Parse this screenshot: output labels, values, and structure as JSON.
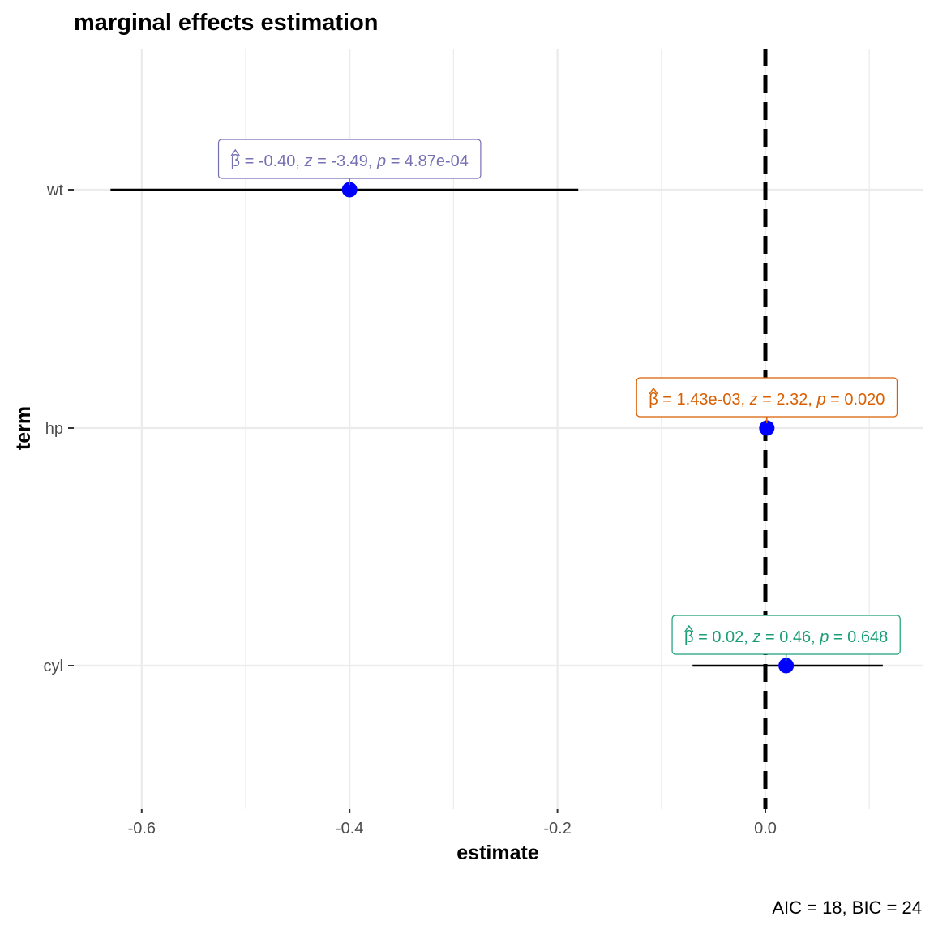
{
  "chart_data": {
    "type": "scatter",
    "title": "marginal effects estimation",
    "xlabel": "estimate",
    "ylabel": "term",
    "caption": "AIC = 18, BIC = 24",
    "xlim": [
      -0.66,
      0.152
    ],
    "x_ticks": [
      -0.6,
      -0.4,
      -0.2,
      0.0
    ],
    "x_tick_labels": [
      "-0.6",
      "-0.4",
      "-0.2",
      "0.0"
    ],
    "x_minor_ticks": [
      -0.5,
      -0.3,
      -0.1,
      0.1
    ],
    "reference_line": 0.0,
    "categories": [
      "wt",
      "hp",
      "cyl"
    ],
    "grid": true,
    "point_color": "#0000ff",
    "terms": [
      {
        "term": "wt",
        "estimate": -0.4,
        "conf_low": -0.63,
        "conf_high": -0.18,
        "label_color": "#7570b3",
        "label": {
          "beta": "β",
          "beta_eq": " = -0.40,  ",
          "z": "z",
          "z_eq": " = -3.49,  ",
          "p": "p",
          "p_eq": " = 4.87e-04"
        }
      },
      {
        "term": "hp",
        "estimate": 0.00143,
        "conf_low": 0.0002,
        "conf_high": 0.0027,
        "label_color": "#d95f02",
        "label": {
          "beta": "β",
          "beta_eq": " = 1.43e-03,  ",
          "z": "z",
          "z_eq": " = 2.32,  ",
          "p": "p",
          "p_eq": " = 0.020"
        }
      },
      {
        "term": "cyl",
        "estimate": 0.02,
        "conf_low": -0.07,
        "conf_high": 0.113,
        "label_color": "#1b9e77",
        "label": {
          "beta": "β",
          "beta_eq": " = 0.02,  ",
          "z": "z",
          "z_eq": " = 0.46,  ",
          "p": "p",
          "p_eq": " = 0.648"
        }
      }
    ]
  }
}
